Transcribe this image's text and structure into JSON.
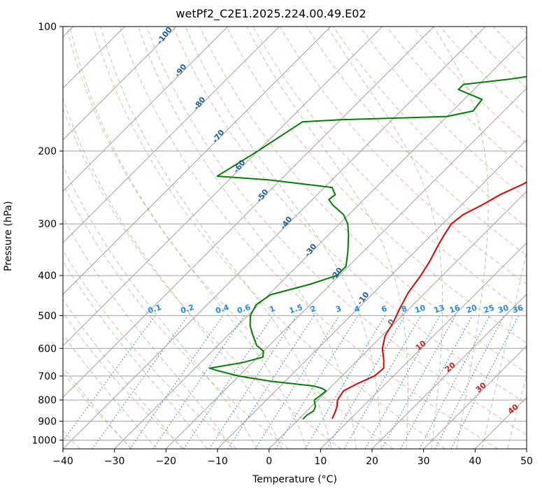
{
  "chart_data": {
    "type": "skew-t",
    "title": "wetPf2_C2E1.2025.224.00.49.E02",
    "xlabel": "Temperature (°C)",
    "ylabel": "Pressure (hPa)",
    "xlim": [
      -40,
      50
    ],
    "ylim": [
      1050,
      100
    ],
    "y_scale": "log",
    "grid": true,
    "x_ticks": [
      -40,
      -30,
      -20,
      -10,
      0,
      10,
      20,
      30,
      40,
      50
    ],
    "y_ticks": [
      100,
      200,
      300,
      400,
      500,
      600,
      700,
      800,
      900,
      1000
    ],
    "colors": {
      "temperature": "#e00000",
      "dewpoint": "#008000",
      "dry_adiabats": "#f5a080",
      "moist_adiabats": "#90c890",
      "mixing_ratio": "#1f77e0",
      "isotherms": "#a0a0a0",
      "dry_adiabat_labels": "#1f5fa0",
      "moist_adiabat_labels": "#d02020",
      "mixing_ratio_labels": "#1f8ae8"
    },
    "series": [
      {
        "name": "Temperature",
        "points": [
          {
            "p": 888,
            "t": 6.4
          },
          {
            "p": 860,
            "t": 5.8
          },
          {
            "p": 830,
            "t": 5.0
          },
          {
            "p": 800,
            "t": 3.8
          },
          {
            "p": 760,
            "t": 3.2
          },
          {
            "p": 730,
            "t": 4.5
          },
          {
            "p": 700,
            "t": 6.3
          },
          {
            "p": 670,
            "t": 6.6
          },
          {
            "p": 640,
            "t": 5.0
          },
          {
            "p": 600,
            "t": 2.5
          },
          {
            "p": 560,
            "t": 0.6
          },
          {
            "p": 520,
            "t": -0.4
          },
          {
            "p": 480,
            "t": -1.9
          },
          {
            "p": 440,
            "t": -3.3
          },
          {
            "p": 400,
            "t": -4.2
          },
          {
            "p": 370,
            "t": -5.2
          },
          {
            "p": 340,
            "t": -6.6
          },
          {
            "p": 320,
            "t": -7.5
          },
          {
            "p": 300,
            "t": -8.3
          },
          {
            "p": 285,
            "t": -7.8
          },
          {
            "p": 270,
            "t": -6.0
          },
          {
            "p": 255,
            "t": -4.5
          },
          {
            "p": 240,
            "t": -2.0
          },
          {
            "p": 220,
            "t": -0.5
          },
          {
            "p": 200,
            "t": 0.4
          },
          {
            "p": 180,
            "t": 2.0
          },
          {
            "p": 165,
            "t": 3.0
          },
          {
            "p": 150,
            "t": 6.5
          },
          {
            "p": 140,
            "t": 8.5
          },
          {
            "p": 130,
            "t": 11.5
          },
          {
            "p": 120,
            "t": 13.5
          },
          {
            "p": 110,
            "t": 15.3
          },
          {
            "p": 100,
            "t": 16.2
          }
        ]
      },
      {
        "name": "Dewpoint",
        "points": [
          {
            "p": 890,
            "t": 0.8
          },
          {
            "p": 870,
            "t": 0.8
          },
          {
            "p": 850,
            "t": 1.3
          },
          {
            "p": 830,
            "t": 0.8
          },
          {
            "p": 800,
            "t": -0.7
          },
          {
            "p": 780,
            "t": -0.4
          },
          {
            "p": 760,
            "t": -0.2
          },
          {
            "p": 750,
            "t": -1.4
          },
          {
            "p": 740,
            "t": -3.5
          },
          {
            "p": 720,
            "t": -13.0
          },
          {
            "p": 700,
            "t": -20.0
          },
          {
            "p": 680,
            "t": -25.0
          },
          {
            "p": 670,
            "t": -27.2
          },
          {
            "p": 650,
            "t": -22.0
          },
          {
            "p": 630,
            "t": -19.0
          },
          {
            "p": 610,
            "t": -20.0
          },
          {
            "p": 590,
            "t": -22.5
          },
          {
            "p": 560,
            "t": -25.0
          },
          {
            "p": 530,
            "t": -27.5
          },
          {
            "p": 500,
            "t": -29.5
          },
          {
            "p": 470,
            "t": -30.5
          },
          {
            "p": 445,
            "t": -29.6
          },
          {
            "p": 420,
            "t": -24.0
          },
          {
            "p": 400,
            "t": -20.5
          },
          {
            "p": 380,
            "t": -20.5
          },
          {
            "p": 350,
            "t": -23.0
          },
          {
            "p": 320,
            "t": -26.0
          },
          {
            "p": 300,
            "t": -28.4
          },
          {
            "p": 285,
            "t": -31.0
          },
          {
            "p": 270,
            "t": -35.0
          },
          {
            "p": 262,
            "t": -36.8
          },
          {
            "p": 255,
            "t": -36.5
          },
          {
            "p": 245,
            "t": -38.5
          },
          {
            "p": 235,
            "t": -52.0
          },
          {
            "p": 230,
            "t": -63.0
          },
          {
            "p": 200,
            "t": -60.0
          },
          {
            "p": 170,
            "t": -57.0
          },
          {
            "p": 168,
            "t": -50.0
          },
          {
            "p": 165,
            "t": -30.0
          },
          {
            "p": 160,
            "t": -26.0
          },
          {
            "p": 150,
            "t": -26.5
          },
          {
            "p": 142,
            "t": -33.0
          },
          {
            "p": 138,
            "t": -33.0
          },
          {
            "p": 134,
            "t": -25.0
          },
          {
            "p": 128,
            "t": -16.0
          },
          {
            "p": 120,
            "t": -13.0
          },
          {
            "p": 112,
            "t": -13.0
          },
          {
            "p": 106,
            "t": -14.0
          },
          {
            "p": 100,
            "t": -16.0
          }
        ]
      }
    ],
    "dry_adiabat_labels": [
      {
        "text": "-100",
        "theta": -100
      },
      {
        "text": "-90",
        "theta": -90
      },
      {
        "text": "-80",
        "theta": -80
      },
      {
        "text": "-70",
        "theta": -70
      },
      {
        "text": "-60",
        "theta": -60
      },
      {
        "text": "-50",
        "theta": -50
      },
      {
        "text": "-40",
        "theta": -40
      },
      {
        "text": "-30",
        "theta": -30
      },
      {
        "text": "-20",
        "theta": -20
      },
      {
        "text": "-10",
        "theta": -10
      },
      {
        "text": "0",
        "theta": 0
      }
    ],
    "moist_adiabat_labels": [
      {
        "text": "10",
        "theta": 10
      },
      {
        "text": "20",
        "theta": 20
      },
      {
        "text": "30",
        "theta": 30
      },
      {
        "text": "40",
        "theta": 40
      }
    ],
    "mixing_ratio_labels": [
      "0.1",
      "0.2",
      "0.4",
      "0.6",
      "1",
      "1.5",
      "2",
      "3",
      "4",
      "6",
      "8",
      "10",
      "13",
      "16",
      "20",
      "25",
      "30",
      "36"
    ]
  }
}
